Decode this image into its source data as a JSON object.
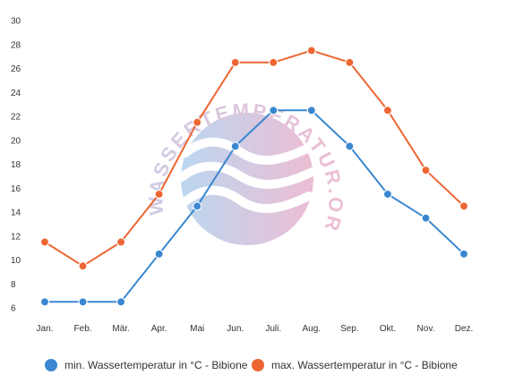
{
  "chart_data": {
    "type": "line",
    "categories": [
      "Jan.",
      "Feb.",
      "Mär.",
      "Apr.",
      "Mai",
      "Jun.",
      "Juli.",
      "Aug.",
      "Sep.",
      "Okt.",
      "Nov.",
      "Dez."
    ],
    "y_ticks": [
      6,
      8,
      10,
      12,
      14,
      16,
      18,
      20,
      22,
      24,
      26,
      28,
      30
    ],
    "ylim": [
      6,
      30
    ],
    "grid": false,
    "legend_position": "bottom",
    "series": [
      {
        "name": "min. Wassertemperatur in °C - Bibione",
        "color": "#3a87d0",
        "values": [
          6.5,
          6.5,
          6.5,
          10.5,
          14.5,
          19.5,
          22.5,
          22.5,
          19.5,
          15.5,
          13.5,
          10.5
        ]
      },
      {
        "name": "max. Wassertemperatur in °C - Bibione",
        "color": "#ee6633",
        "values": [
          11.5,
          9.5,
          11.5,
          15.5,
          21.5,
          26.5,
          26.5,
          27.5,
          26.5,
          22.5,
          17.5,
          14.5
        ]
      }
    ]
  },
  "watermark": {
    "text": "WASSERTEMPERATUR.ORG",
    "colors": [
      "#9fc6ea",
      "#e5a3c2"
    ]
  }
}
